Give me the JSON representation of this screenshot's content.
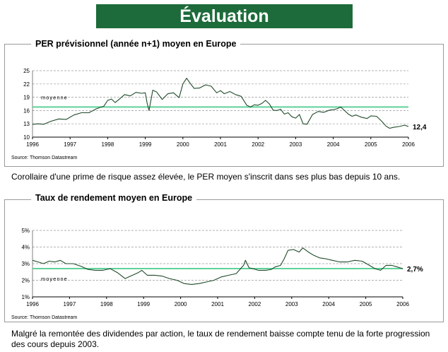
{
  "header": {
    "title": "Évaluation"
  },
  "chart_data": [
    {
      "type": "line",
      "title": "PER prévisionnel (année n+1) moyen en Europe",
      "source": "Source: Thomson Datastream",
      "x_ticks": [
        "1996",
        "1997",
        "1998",
        "1999",
        "2000",
        "2001",
        "2002",
        "2003",
        "2004",
        "2005",
        "2006"
      ],
      "y_ticks": [
        "10",
        "13",
        "16",
        "19",
        "22",
        "25"
      ],
      "ylim": [
        10,
        25
      ],
      "xlim": [
        1996,
        2006
      ],
      "grid": true,
      "mean_label": "moyenne",
      "mean_value": 16.8,
      "end_label": "12,4",
      "series": [
        {
          "color": "#1f4a2a",
          "x": [
            1996.0,
            1996.15,
            1996.3,
            1996.5,
            1996.7,
            1996.9,
            1997.1,
            1997.3,
            1997.5,
            1997.7,
            1997.9,
            1998.0,
            1998.1,
            1998.2,
            1998.3,
            1998.45,
            1998.6,
            1998.75,
            1998.9,
            1999.0,
            1999.05,
            1999.1,
            1999.2,
            1999.3,
            1999.45,
            1999.6,
            1999.75,
            1999.9,
            2000.0,
            2000.1,
            2000.2,
            2000.3,
            2000.45,
            2000.6,
            2000.75,
            2000.9,
            2001.0,
            2001.1,
            2001.25,
            2001.4,
            2001.55,
            2001.7,
            2001.8,
            2001.9,
            2002.0,
            2002.1,
            2002.2,
            2002.3,
            2002.4,
            2002.5,
            2002.6,
            2002.7,
            2002.8,
            2002.9,
            2003.0,
            2003.1,
            2003.2,
            2003.3,
            2003.45,
            2003.6,
            2003.75,
            2003.9,
            2004.0,
            2004.1,
            2004.2,
            2004.3,
            2004.4,
            2004.5,
            2004.6,
            2004.75,
            2004.9,
            2005.0,
            2005.15,
            2005.3,
            2005.4,
            2005.5,
            2005.6,
            2005.75,
            2005.9,
            2006.0
          ],
          "y": [
            12.9,
            13.0,
            12.9,
            13.6,
            14.1,
            14.0,
            15.0,
            15.5,
            15.5,
            16.4,
            17.0,
            18.3,
            18.6,
            17.8,
            18.5,
            19.6,
            19.3,
            20.1,
            19.9,
            20.0,
            17.6,
            16.0,
            20.6,
            20.2,
            18.5,
            19.8,
            20.0,
            18.9,
            22.0,
            23.3,
            22.1,
            21.0,
            21.1,
            21.8,
            21.5,
            20.0,
            20.5,
            19.8,
            20.3,
            19.6,
            19.2,
            17.2,
            16.8,
            17.3,
            17.2,
            17.6,
            18.3,
            17.5,
            16.1,
            16.0,
            16.3,
            15.2,
            15.5,
            14.6,
            14.3,
            15.1,
            13.0,
            12.9,
            15.1,
            15.8,
            15.6,
            16.1,
            16.2,
            16.4,
            16.8,
            16.0,
            15.2,
            14.7,
            15.0,
            14.5,
            14.2,
            14.8,
            14.7,
            13.5,
            12.5,
            12.0,
            12.2,
            12.4,
            12.7,
            12.4
          ]
        }
      ]
    },
    {
      "type": "line",
      "title": "Taux de rendement moyen en Europe",
      "source": "Source: Thomson Datastream",
      "x_ticks": [
        "1996",
        "1997",
        "1998",
        "1999",
        "2000",
        "2001",
        "2002",
        "2003",
        "2004",
        "2005",
        "2006"
      ],
      "y_ticks": [
        "1%",
        "2%",
        "3%",
        "4%",
        "5%"
      ],
      "ylim": [
        1,
        5
      ],
      "xlim": [
        1996,
        2006
      ],
      "grid": true,
      "mean_label": "moyenne",
      "mean_value": 2.7,
      "end_label": "2,7%",
      "series": [
        {
          "color": "#1f4a2a",
          "x": [
            1996.0,
            1996.15,
            1996.3,
            1996.45,
            1996.6,
            1996.75,
            1996.9,
            1997.1,
            1997.3,
            1997.5,
            1997.7,
            1997.9,
            1998.1,
            1998.3,
            1998.5,
            1998.7,
            1998.85,
            1998.95,
            1999.1,
            1999.3,
            1999.5,
            1999.7,
            1999.9,
            2000.1,
            2000.3,
            2000.5,
            2000.7,
            2000.9,
            2001.1,
            2001.3,
            2001.5,
            2001.7,
            2001.75,
            2001.85,
            2001.95,
            2002.1,
            2002.3,
            2002.45,
            2002.55,
            2002.7,
            2002.8,
            2002.9,
            2003.05,
            2003.2,
            2003.3,
            2003.45,
            2003.6,
            2003.75,
            2003.9,
            2004.1,
            2004.3,
            2004.5,
            2004.7,
            2004.9,
            2005.1,
            2005.25,
            2005.4,
            2005.55,
            2005.7,
            2005.85,
            2006.0
          ],
          "y": [
            3.2,
            3.1,
            3.0,
            3.15,
            3.1,
            3.2,
            3.0,
            3.0,
            2.85,
            2.65,
            2.6,
            2.6,
            2.7,
            2.45,
            2.1,
            2.3,
            2.45,
            2.6,
            2.3,
            2.3,
            2.25,
            2.1,
            2.0,
            1.8,
            1.75,
            1.8,
            1.9,
            2.0,
            2.2,
            2.3,
            2.4,
            2.9,
            3.2,
            2.75,
            2.7,
            2.6,
            2.6,
            2.65,
            2.8,
            2.9,
            3.3,
            3.8,
            3.85,
            3.7,
            3.95,
            3.7,
            3.5,
            3.35,
            3.3,
            3.2,
            3.1,
            3.1,
            3.2,
            3.15,
            2.9,
            2.7,
            2.6,
            2.9,
            2.9,
            2.8,
            2.7
          ]
        }
      ]
    }
  ],
  "captions": {
    "c1": "Corollaire d'une prime de risque assez élevée, le PER moyen s'inscrit dans ses plus bas depuis 10 ans.",
    "c2": "Malgré la remontée des dividendes par action, le taux de rendement baisse compte tenu de la forte progression des cours depuis 2003."
  },
  "colors": {
    "banner": "#1d6b3a",
    "mean_line": "#5ed29a",
    "series": "#1f4a2a",
    "grid": "#999999"
  }
}
